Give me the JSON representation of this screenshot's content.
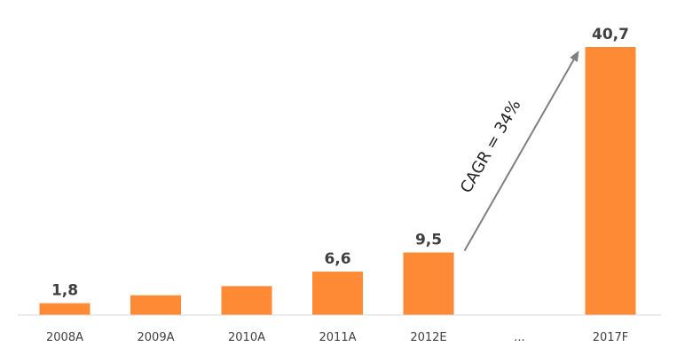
{
  "chart_data": {
    "type": "bar",
    "categories": [
      "2008A",
      "2009A",
      "2010A",
      "2011A",
      "2012E",
      "...",
      "2017F"
    ],
    "values": [
      1.8,
      3.0,
      4.4,
      6.6,
      9.5,
      null,
      40.7
    ],
    "data_labels": [
      "1,8",
      "",
      "",
      "6,6",
      "9,5",
      "",
      "40,7"
    ],
    "ylim": [
      0,
      42
    ],
    "grid": false,
    "bar_color": "#FF8A35",
    "annotation": {
      "text": "CAGR = 34%",
      "from_category": "2012E",
      "to_category": "2017F"
    }
  }
}
